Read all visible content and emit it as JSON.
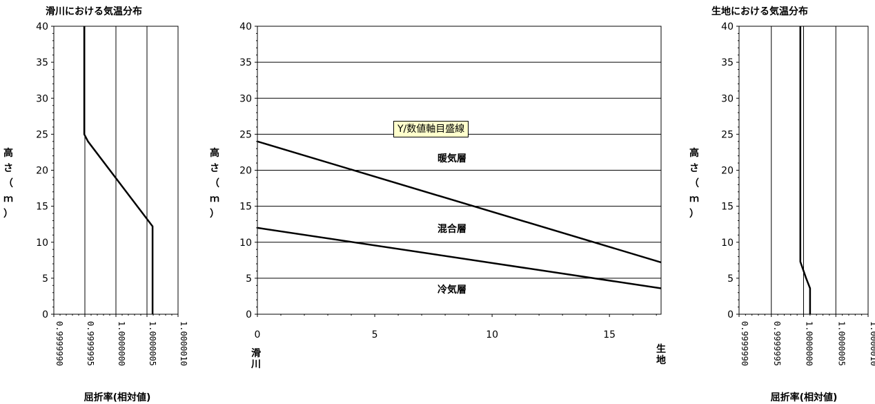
{
  "chart_data": [
    {
      "id": "left",
      "type": "line",
      "title": "滑川における気温分布",
      "ylabel": "高さ（ｍ）",
      "xlabel": "屈折率(相対値)",
      "xlim": [
        0.999999,
        1.000001
      ],
      "ylim": [
        0,
        40
      ],
      "xticks": [
        "0.9999990",
        "0.9999995",
        "1.0000000",
        "1.0000005",
        "1.0000010"
      ],
      "yticks": [
        "0",
        "5",
        "10",
        "15",
        "20",
        "25",
        "30",
        "35",
        "40"
      ],
      "grid": "vertical",
      "series": [
        {
          "points": [
            [
              1.00000059,
              0
            ],
            [
              1.00000059,
              12.2
            ],
            [
              0.99999955,
              24
            ],
            [
              0.99999949,
              25
            ],
            [
              0.99999949,
              40
            ]
          ]
        }
      ]
    },
    {
      "id": "middle",
      "type": "line",
      "ylabel": "高さ（ｍ）",
      "xlim": [
        0,
        17.2
      ],
      "ylim": [
        0,
        40
      ],
      "xticks": [
        "0",
        "5",
        "10",
        "15"
      ],
      "yticks": [
        "0",
        "5",
        "10",
        "15",
        "20",
        "25",
        "30",
        "35",
        "40"
      ],
      "x_end_labels": {
        "left": "滑川",
        "right": "生地"
      },
      "grid": "horizontal",
      "series": [
        {
          "points": [
            [
              0,
              24
            ],
            [
              17.2,
              7.2
            ]
          ]
        },
        {
          "points": [
            [
              0,
              12
            ],
            [
              17.2,
              3.6
            ]
          ]
        }
      ],
      "annotations": [
        "暖気層",
        "混合層",
        "冷気層"
      ],
      "tooltip": "Y/数値軸目盛線"
    },
    {
      "id": "right",
      "type": "line",
      "title": "生地における気温分布",
      "ylabel": "高さ（ｍ）",
      "xlabel": "屈折率(相対値)",
      "xlim": [
        0.999999,
        1.000001
      ],
      "ylim": [
        0,
        40
      ],
      "xticks": [
        "0.9999990",
        "0.9999995",
        "1.0000000",
        "1.0000005",
        "1.0000010"
      ],
      "yticks": [
        "0",
        "5",
        "10",
        "15",
        "20",
        "25",
        "30",
        "35",
        "40"
      ],
      "grid": "vertical",
      "series": [
        {
          "points": [
            [
              1.0000001,
              0
            ],
            [
              1.0000001,
              3.6
            ],
            [
              1.00000004,
              5
            ],
            [
              0.99999995,
              7.3
            ],
            [
              0.99999995,
              40
            ]
          ]
        }
      ]
    }
  ]
}
